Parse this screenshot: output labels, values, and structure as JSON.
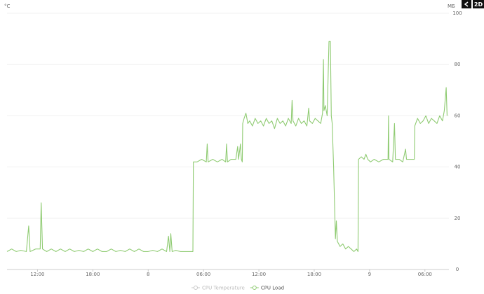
{
  "chart_data": {
    "type": "line",
    "y_axis_label": "МБ",
    "left_axis_label": "°C",
    "x": [
      -15.3,
      -14.8,
      -14.3,
      -13.8,
      -13.2,
      -12.95,
      -12.8,
      -12.2,
      -11.7,
      -11.6,
      -11.45,
      -11.0,
      -10.5,
      -10.0,
      -9.5,
      -9.0,
      -8.5,
      -8.0,
      -7.5,
      -7.0,
      -6.5,
      -6.0,
      -5.5,
      -5.0,
      -4.5,
      -4.0,
      -3.5,
      -3.0,
      -2.5,
      -2.0,
      -1.5,
      -1.0,
      -0.5,
      0,
      0.5,
      1.0,
      1.5,
      2.0,
      2.2,
      2.35,
      2.45,
      2.6,
      3.0,
      3.5,
      4.0,
      4.5,
      4.85,
      4.9,
      5.3,
      5.8,
      6.3,
      6.4,
      6.5,
      7.0,
      7.5,
      8.0,
      8.4,
      8.5,
      8.6,
      9.0,
      9.5,
      9.7,
      9.8,
      10.0,
      10.1,
      10.2,
      10.25,
      10.4,
      10.6,
      10.8,
      11.0,
      11.3,
      11.6,
      11.9,
      12.2,
      12.5,
      12.8,
      13.1,
      13.4,
      13.7,
      14.0,
      14.3,
      14.6,
      14.9,
      15.2,
      15.5,
      15.6,
      15.7,
      16.0,
      16.3,
      16.6,
      16.9,
      17.2,
      17.4,
      17.5,
      17.8,
      18.1,
      18.4,
      18.7,
      18.9,
      19.0,
      19.05,
      19.2,
      19.4,
      19.6,
      19.75,
      19.85,
      19.95,
      20.1,
      20.3,
      20.4,
      20.5,
      20.8,
      21.1,
      21.4,
      21.7,
      22.0,
      22.3,
      22.6,
      22.75,
      22.8,
      23.1,
      23.4,
      23.6,
      23.8,
      24.1,
      24.5,
      25.0,
      25.5,
      26.0,
      26.05,
      26.1,
      26.5,
      26.7,
      26.8,
      27.2,
      27.6,
      27.9,
      28.0,
      28.5,
      28.85,
      28.9,
      29.2,
      29.5,
      29.8,
      30.1,
      30.4,
      30.7,
      31.0,
      31.3,
      31.6,
      31.9,
      32.1,
      32.3,
      32.4
    ],
    "series": [
      {
        "name": "CPU Load",
        "color": "#8fcb72",
        "values": [
          7,
          8,
          7,
          7.5,
          7,
          17,
          7,
          8,
          8,
          26,
          8,
          7,
          8,
          7,
          8,
          7,
          8,
          7,
          7.5,
          7,
          8,
          7,
          8,
          7,
          7,
          8,
          7,
          7.5,
          7,
          8,
          7,
          8,
          7,
          7,
          7.5,
          7,
          8,
          7,
          13,
          7,
          14,
          7,
          7.5,
          7,
          7,
          7,
          7,
          42,
          42,
          43,
          42,
          49,
          42,
          43,
          42,
          43,
          42,
          49,
          42,
          43,
          43,
          48,
          43,
          49,
          43,
          42,
          57,
          59,
          61,
          57,
          58,
          56,
          59,
          57,
          58,
          56,
          59,
          57,
          58,
          55,
          59,
          57,
          58,
          56,
          59,
          57,
          66,
          58,
          56,
          59,
          57,
          58,
          56,
          63,
          58,
          57,
          59,
          58,
          57,
          61,
          82,
          62,
          64,
          60,
          89,
          89,
          60,
          57,
          40,
          12,
          19,
          11,
          9,
          10,
          8,
          9,
          8,
          7,
          8,
          7,
          43,
          44,
          43,
          45,
          43,
          42,
          43,
          42,
          43,
          43,
          60,
          43,
          42,
          57,
          43,
          43,
          42,
          47,
          43,
          43,
          43,
          56,
          59,
          57,
          58,
          60,
          57,
          59,
          58,
          57,
          60,
          58,
          62,
          71,
          60
        ]
      }
    ],
    "legend_entries": [
      {
        "name": "CPU Temperature",
        "color": "#c8c8c8"
      },
      {
        "name": "CPU Load",
        "color": "#8fcb72"
      }
    ],
    "xlim": [
      -15.3,
      32.6
    ],
    "xticks": [
      {
        "value": -12,
        "label": "12:00"
      },
      {
        "value": -6,
        "label": "18:00"
      },
      {
        "value": 0,
        "label": "8"
      },
      {
        "value": 6,
        "label": "06:00"
      },
      {
        "value": 12,
        "label": "12:00"
      },
      {
        "value": 18,
        "label": "18:00"
      },
      {
        "value": 24,
        "label": "9"
      },
      {
        "value": 30,
        "label": "06:00"
      }
    ],
    "ylim": [
      0,
      100
    ],
    "yticks": [
      0,
      20,
      40,
      60,
      80,
      100
    ],
    "grid": true
  },
  "toolbar": {
    "mode": "2D"
  }
}
